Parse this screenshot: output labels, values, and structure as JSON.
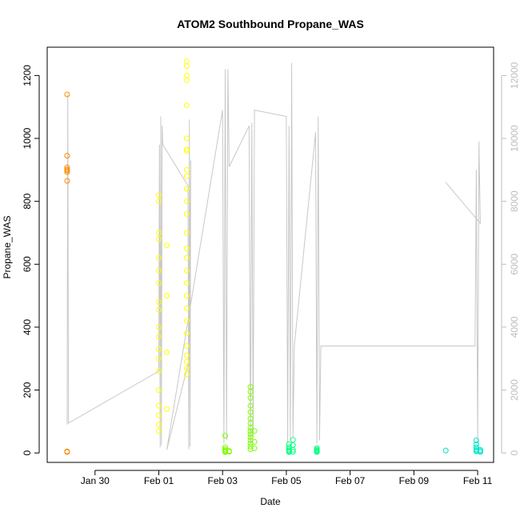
{
  "chart_data": {
    "type": "scatter",
    "title": "ATOM2 Southbound Propane_WAS",
    "xlabel": "Date",
    "ylabel": "Propane_WAS",
    "x_ticks": [
      "Jan 30",
      "Feb 01",
      "Feb 03",
      "Feb 05",
      "Feb 07",
      "Feb 09",
      "Feb 11"
    ],
    "y_ticks": [
      "0",
      "200",
      "400",
      "600",
      "800",
      "1000",
      "1200"
    ],
    "y2_ticks": [
      "0",
      "2000",
      "4000",
      "6000",
      "8000",
      "10000",
      "12000"
    ],
    "xlim": [
      "2017-01-28T12:00",
      "2017-02-11T12:00"
    ],
    "ylim": [
      -30,
      1290
    ],
    "y2lim": [
      -300,
      12900
    ],
    "grid": false,
    "legend": "none",
    "point_marker": "open circle",
    "colors": {
      "axis": "#000000",
      "secondary_axis": "#bdbdbd",
      "secondary_line": "#c8c8c8",
      "group_1": "#ff8c00",
      "group_2": "#ffff00",
      "group_3": "#7cfc00",
      "group_4": "#00ff7f",
      "group_5": "#00e5c8"
    },
    "series": [
      {
        "color_key": "group_1",
        "points": [
          [
            "2017-01-29T03:00",
            1140
          ],
          [
            "2017-01-29T03:00",
            945
          ],
          [
            "2017-01-29T03:00",
            908
          ],
          [
            "2017-01-29T03:00",
            902
          ],
          [
            "2017-01-29T03:00",
            898
          ],
          [
            "2017-01-29T03:00",
            893
          ],
          [
            "2017-01-29T03:00",
            865
          ],
          [
            "2017-01-29T03:00",
            5
          ],
          [
            "2017-01-29T03:00",
            3
          ]
        ]
      },
      {
        "color_key": "group_2",
        "points": [
          [
            "2017-02-01T00:00",
            820
          ],
          [
            "2017-02-01T00:00",
            800
          ],
          [
            "2017-02-01T00:00",
            700
          ],
          [
            "2017-02-01T00:00",
            680
          ],
          [
            "2017-02-01T00:00",
            620
          ],
          [
            "2017-02-01T00:00",
            580
          ],
          [
            "2017-02-01T00:00",
            540
          ],
          [
            "2017-02-01T00:00",
            480
          ],
          [
            "2017-02-01T00:00",
            455
          ],
          [
            "2017-02-01T00:00",
            400
          ],
          [
            "2017-02-01T00:00",
            370
          ],
          [
            "2017-02-01T00:00",
            330
          ],
          [
            "2017-02-01T00:00",
            300
          ],
          [
            "2017-02-01T00:00",
            260
          ],
          [
            "2017-02-01T00:00",
            200
          ],
          [
            "2017-02-01T00:00",
            150
          ],
          [
            "2017-02-01T00:00",
            120
          ],
          [
            "2017-02-01T00:00",
            90
          ],
          [
            "2017-02-01T00:00",
            70
          ],
          [
            "2017-02-01T06:00",
            660
          ],
          [
            "2017-02-01T06:00",
            500
          ],
          [
            "2017-02-01T06:00",
            320
          ],
          [
            "2017-02-01T06:00",
            140
          ],
          [
            "2017-02-01T21:00",
            1245
          ],
          [
            "2017-02-01T21:00",
            1230
          ],
          [
            "2017-02-01T21:00",
            1200
          ],
          [
            "2017-02-01T21:00",
            1185
          ],
          [
            "2017-02-01T21:00",
            1105
          ],
          [
            "2017-02-01T21:00",
            1000
          ],
          [
            "2017-02-01T21:00",
            965
          ],
          [
            "2017-02-01T21:00",
            960
          ],
          [
            "2017-02-01T21:00",
            900
          ],
          [
            "2017-02-01T21:00",
            880
          ],
          [
            "2017-02-01T21:00",
            840
          ],
          [
            "2017-02-01T21:00",
            800
          ],
          [
            "2017-02-01T21:00",
            760
          ],
          [
            "2017-02-01T21:00",
            700
          ],
          [
            "2017-02-01T21:00",
            650
          ],
          [
            "2017-02-01T21:00",
            620
          ],
          [
            "2017-02-01T21:00",
            580
          ],
          [
            "2017-02-01T21:00",
            540
          ],
          [
            "2017-02-01T21:00",
            500
          ],
          [
            "2017-02-01T21:00",
            460
          ],
          [
            "2017-02-01T21:00",
            420
          ],
          [
            "2017-02-01T21:00",
            380
          ],
          [
            "2017-02-01T21:00",
            340
          ],
          [
            "2017-02-01T21:00",
            310
          ],
          [
            "2017-02-01T21:00",
            290
          ],
          [
            "2017-02-01T21:00",
            270
          ],
          [
            "2017-02-01T21:00",
            250
          ]
        ]
      },
      {
        "color_key": "group_3",
        "points": [
          [
            "2017-02-03T02:00",
            55
          ],
          [
            "2017-02-03T02:00",
            18
          ],
          [
            "2017-02-03T02:00",
            12
          ],
          [
            "2017-02-03T02:00",
            8
          ],
          [
            "2017-02-03T02:00",
            5
          ],
          [
            "2017-02-03T02:00",
            3
          ],
          [
            "2017-02-03T05:00",
            6
          ],
          [
            "2017-02-03T05:00",
            4
          ],
          [
            "2017-02-03T21:00",
            210
          ],
          [
            "2017-02-03T21:00",
            195
          ],
          [
            "2017-02-03T21:00",
            175
          ],
          [
            "2017-02-03T21:00",
            150
          ],
          [
            "2017-02-03T21:00",
            130
          ],
          [
            "2017-02-03T21:00",
            110
          ],
          [
            "2017-02-03T21:00",
            95
          ],
          [
            "2017-02-03T21:00",
            80
          ],
          [
            "2017-02-03T21:00",
            70
          ],
          [
            "2017-02-03T21:00",
            60
          ],
          [
            "2017-02-03T21:00",
            50
          ],
          [
            "2017-02-03T21:00",
            40
          ],
          [
            "2017-02-03T21:00",
            30
          ],
          [
            "2017-02-03T21:00",
            20
          ],
          [
            "2017-02-03T21:00",
            12
          ],
          [
            "2017-02-04T00:00",
            70
          ],
          [
            "2017-02-04T00:00",
            35
          ],
          [
            "2017-02-04T00:00",
            15
          ]
        ]
      },
      {
        "color_key": "group_4",
        "points": [
          [
            "2017-02-05T02:00",
            28
          ],
          [
            "2017-02-05T02:00",
            18
          ],
          [
            "2017-02-05T02:00",
            12
          ],
          [
            "2017-02-05T02:00",
            8
          ],
          [
            "2017-02-05T02:00",
            5
          ],
          [
            "2017-02-05T02:00",
            3
          ],
          [
            "2017-02-05T05:00",
            42
          ],
          [
            "2017-02-05T05:00",
            25
          ],
          [
            "2017-02-05T05:00",
            10
          ],
          [
            "2017-02-05T05:00",
            4
          ],
          [
            "2017-02-05T23:00",
            15
          ],
          [
            "2017-02-05T23:00",
            11
          ],
          [
            "2017-02-05T23:00",
            8
          ],
          [
            "2017-02-05T23:00",
            5
          ],
          [
            "2017-02-05T23:00",
            3
          ]
        ]
      },
      {
        "color_key": "group_5",
        "points": [
          [
            "2017-02-10T00:00",
            8
          ],
          [
            "2017-02-10T23:00",
            40
          ],
          [
            "2017-02-10T23:00",
            28
          ],
          [
            "2017-02-10T23:00",
            18
          ],
          [
            "2017-02-10T23:00",
            12
          ],
          [
            "2017-02-10T23:00",
            8
          ],
          [
            "2017-02-10T23:00",
            5
          ],
          [
            "2017-02-11T02:00",
            10
          ],
          [
            "2017-02-11T02:00",
            6
          ],
          [
            "2017-02-11T02:00",
            3
          ]
        ]
      }
    ],
    "secondary_line": [
      [
        "2017-01-29T03:00",
        900
      ],
      [
        "2017-01-29T03:30",
        11400
      ],
      [
        "2017-01-29T04:00",
        950
      ],
      [
        "2017-02-01T00:00",
        2600
      ],
      [
        "2017-02-01T00:30",
        9800
      ],
      [
        "2017-02-01T01:00",
        180
      ],
      [
        "2017-02-01T01:30",
        10700
      ],
      [
        "2017-02-01T02:00",
        250
      ],
      [
        "2017-02-01T02:30",
        10400
      ],
      [
        "2017-02-01T03:00",
        9800
      ],
      [
        "2017-02-01T22:00",
        8500
      ],
      [
        "2017-02-01T22:30",
        120
      ],
      [
        "2017-02-01T23:00",
        10600
      ],
      [
        "2017-02-01T23:30",
        200
      ],
      [
        "2017-02-02T00:00",
        9300
      ],
      [
        "2017-02-01T23:00",
        3000
      ],
      [
        "2017-02-01T06:00",
        100
      ],
      [
        "2017-02-03T00:00",
        10900
      ],
      [
        "2017-02-03T01:00",
        300
      ],
      [
        "2017-02-03T02:00",
        12200
      ],
      [
        "2017-02-03T03:00",
        400
      ],
      [
        "2017-02-03T04:00",
        12200
      ],
      [
        "2017-02-03T05:00",
        9100
      ],
      [
        "2017-02-03T20:00",
        10400
      ],
      [
        "2017-02-03T21:00",
        300
      ],
      [
        "2017-02-03T22:00",
        10500
      ],
      [
        "2017-02-03T23:00",
        500
      ],
      [
        "2017-02-04T00:00",
        10900
      ],
      [
        "2017-02-05T00:00",
        10700
      ],
      [
        "2017-02-05T01:00",
        300
      ],
      [
        "2017-02-05T02:00",
        10400
      ],
      [
        "2017-02-05T03:00",
        400
      ],
      [
        "2017-02-05T04:00",
        12400
      ],
      [
        "2017-02-05T05:00",
        500
      ],
      [
        "2017-02-05T06:00",
        3400
      ],
      [
        "2017-02-05T22:00",
        10200
      ],
      [
        "2017-02-05T23:00",
        300
      ],
      [
        "2017-02-06T00:00",
        10700
      ],
      [
        "2017-02-06T01:00",
        400
      ],
      [
        "2017-02-06T02:00",
        3400
      ],
      [
        "2017-02-10T22:00",
        3400
      ],
      [
        "2017-02-10T23:00",
        9000
      ],
      [
        "2017-02-11T00:00",
        300
      ],
      [
        "2017-02-11T01:00",
        9900
      ],
      [
        "2017-02-11T02:00",
        7300
      ],
      [
        "2017-02-10T00:00",
        8600
      ]
    ]
  }
}
